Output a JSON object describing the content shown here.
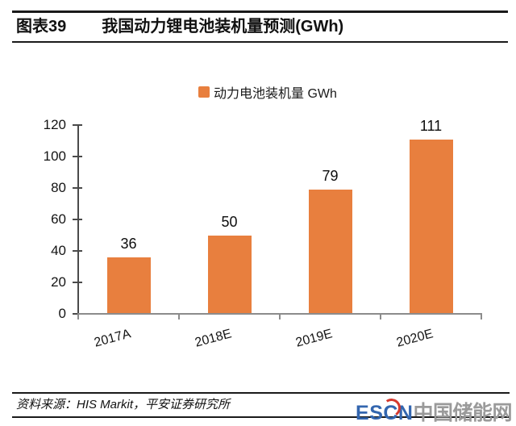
{
  "header": {
    "figure_label": "图表39",
    "title": "我国动力锂电池装机量预测(GWh)"
  },
  "legend": {
    "label": "动力电池装机量 GWh",
    "color": "#E87F3E"
  },
  "chart_data": {
    "type": "bar",
    "title": "我国动力锂电池装机量预测(GWh)",
    "categories": [
      "2017A",
      "2018E",
      "2019E",
      "2020E"
    ],
    "series": [
      {
        "name": "动力电池装机量 GWh",
        "values": [
          36,
          50,
          79,
          111
        ]
      }
    ],
    "ylim": [
      0,
      120
    ],
    "yticks": [
      0,
      20,
      40,
      60,
      80,
      100,
      120
    ],
    "grid": false,
    "legend_position": "top",
    "data_labels": true,
    "bar_color": "#E87F3E",
    "y_axis_color": "#4a4a4a",
    "x_axis_color": "#8c8c8c"
  },
  "footer": {
    "source": "资料来源：HIS Markit，平安证券研究所"
  },
  "logo": {
    "escn": "ESCN",
    "name": "中国储能网",
    "escn_color": "#3366AF",
    "name_color": "#9A9A9A",
    "accent_color": "#D4392E"
  }
}
